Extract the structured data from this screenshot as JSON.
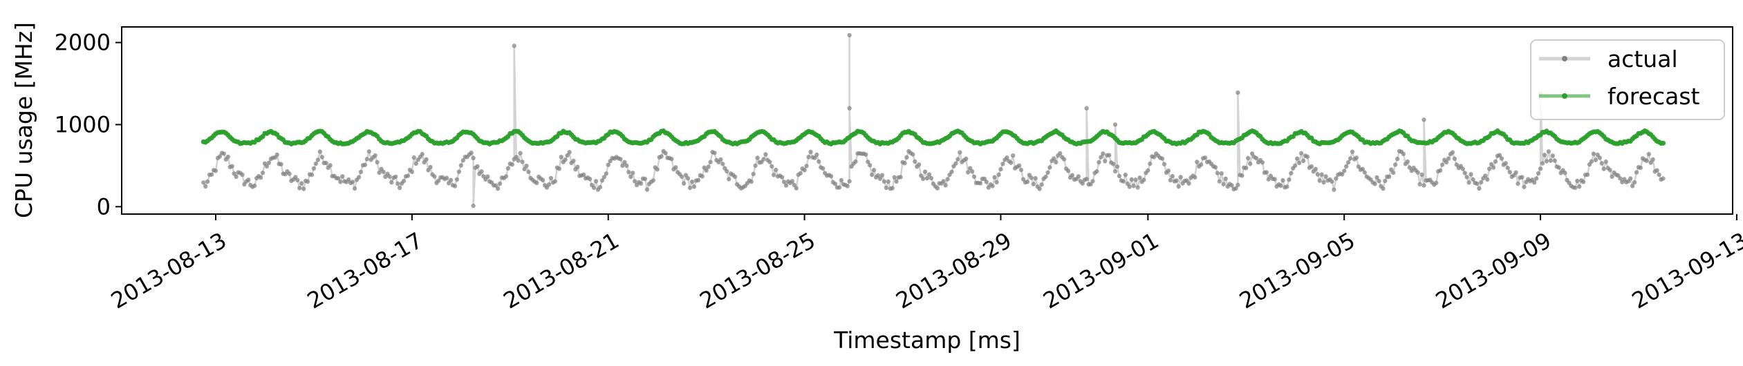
{
  "chart_data": {
    "type": "line",
    "title": "",
    "xlabel": "Timestamp [ms]",
    "ylabel": "CPU usage [MHz]",
    "x_tick_labels": [
      "2013-08-13",
      "2013-08-17",
      "2013-08-21",
      "2013-08-25",
      "2013-08-29",
      "2013-09-01",
      "2013-09-05",
      "2013-09-09",
      "2013-09-13"
    ],
    "y_tick_labels": [
      "0",
      "1000",
      "2000"
    ],
    "y_ticks": [
      0,
      1000,
      2000
    ],
    "xlim": [
      "2013-08-11T02:00",
      "2013-09-12T22:00"
    ],
    "ylim": [
      -90,
      2190
    ],
    "grid": false,
    "legend_position": "top-right",
    "sampling_interval_hours": 1,
    "series": [
      {
        "name": "actual",
        "color": "#808080",
        "x_range": [
          "2013-08-12T18:00",
          "2013-09-11T12:00"
        ],
        "description_baseline_mhz": 420,
        "daily_amplitude_mhz": 160,
        "spikes": [
          {
            "x": "2013-08-18T06:00",
            "y": 10
          },
          {
            "x": "2013-08-19T02:00",
            "y": 1960
          },
          {
            "x": "2013-08-25T22:00",
            "y": 2090
          },
          {
            "x": "2013-08-25T22:00",
            "y": 1200
          },
          {
            "x": "2013-08-30T18:00",
            "y": 1200
          },
          {
            "x": "2013-08-31T08:00",
            "y": 1000
          },
          {
            "x": "2013-09-02T20:00",
            "y": 1390
          },
          {
            "x": "2013-09-06T15:00",
            "y": 1060
          },
          {
            "x": "2013-09-09T00:00",
            "y": 1380
          }
        ]
      },
      {
        "name": "forecast",
        "color": "#2ca02c",
        "x_range": [
          "2013-08-12T18:00",
          "2013-09-11T12:00"
        ],
        "description_baseline_mhz": 830,
        "daily_amplitude_mhz": 70
      }
    ]
  },
  "legend": {
    "entries": [
      {
        "label": "actual",
        "color": "#808080"
      },
      {
        "label": "forecast",
        "color": "#2ca02c"
      }
    ]
  }
}
